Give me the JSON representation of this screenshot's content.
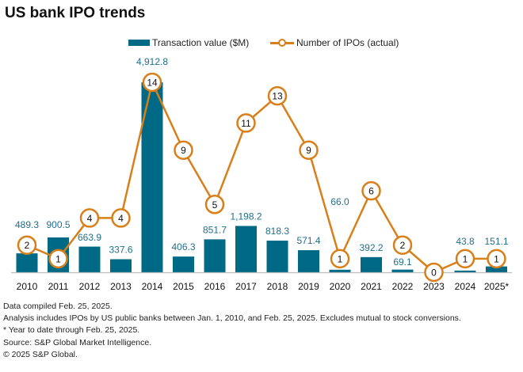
{
  "chart_data": {
    "type": "bar+line",
    "title": "US bank IPO trends",
    "categories": [
      "2010",
      "2011",
      "2012",
      "2013",
      "2014",
      "2015",
      "2016",
      "2017",
      "2018",
      "2019",
      "2020",
      "2021",
      "2022",
      "2023",
      "2024",
      "2025*"
    ],
    "series": [
      {
        "name": "Transaction value ($M)",
        "type": "bar",
        "color": "#006a86",
        "values": [
          489.3,
          900.5,
          663.9,
          337.6,
          4912.8,
          406.3,
          851.7,
          1198.2,
          818.3,
          571.4,
          66.0,
          392.2,
          69.1,
          null,
          43.8,
          151.1
        ],
        "labels": [
          "489.3",
          "900.5",
          "663.9",
          "337.6",
          "4,912.8",
          "406.3",
          "851.7",
          "1,198.2",
          "818.3",
          "571.4",
          "66.0",
          "392.2",
          "69.1",
          "",
          "43.8",
          "151.1"
        ]
      },
      {
        "name": "Number of IPOs (actual)",
        "type": "line",
        "color": "#d97f1a",
        "values": [
          2,
          1,
          4,
          4,
          14,
          9,
          5,
          11,
          13,
          9,
          1,
          6,
          2,
          0,
          1,
          1
        ]
      }
    ],
    "bar_axis_range": [
      0,
      4912.8
    ],
    "line_axis_range": [
      0,
      14
    ],
    "grid": false,
    "legend": "top-center",
    "xlabel": "",
    "ylabel": ""
  },
  "legend": {
    "bar_label": "Transaction value ($M)",
    "line_label": "Number of IPOs (actual)"
  },
  "footnotes": [
    "Data compiled Feb. 25, 2025.",
    "Analysis includes IPOs by US public banks between Jan. 1, 2010, and Feb. 25, 2025. Excludes mutual to stock conversions.",
    "* Year to date through Feb. 25, 2025.",
    "Source: S&P Global Market Intelligence.",
    "© 2025 S&P Global."
  ]
}
